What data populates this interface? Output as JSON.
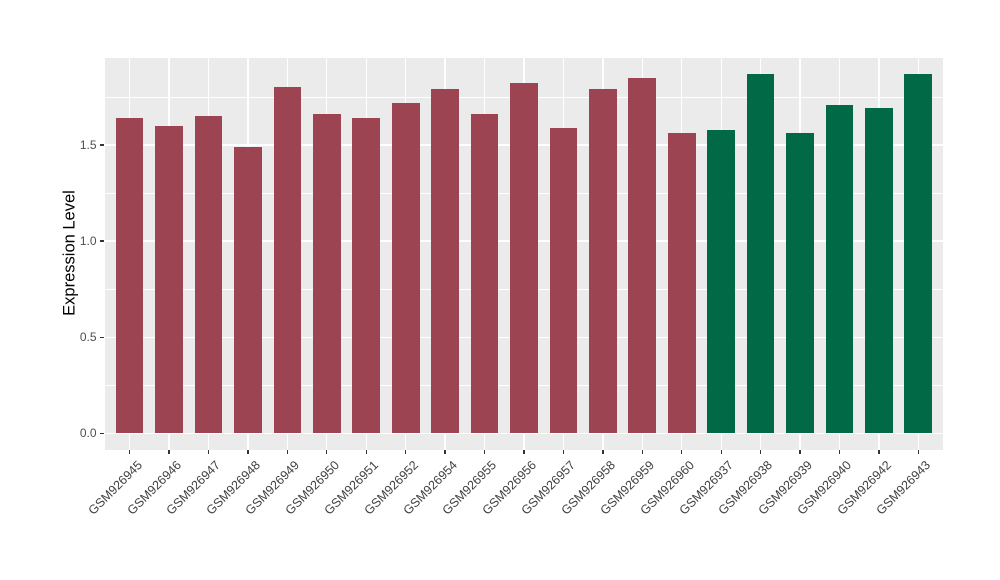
{
  "chart_data": {
    "type": "bar",
    "title": "",
    "xlabel": "",
    "ylabel": "Expression Level",
    "ylim": [
      0,
      1.955
    ],
    "yticks": [
      0.0,
      0.5,
      1.0,
      1.5
    ],
    "ytick_labels": [
      "0.0",
      "0.5",
      "1.0",
      "1.5"
    ],
    "minor_gridlines": [
      0.25,
      0.75,
      1.25,
      1.75
    ],
    "grid": "on",
    "legend_position": "none",
    "bar_width_fraction": 0.7,
    "categories": [
      "GSM926945",
      "GSM926946",
      "GSM926947",
      "GSM926948",
      "GSM926949",
      "GSM926950",
      "GSM926951",
      "GSM926952",
      "GSM926954",
      "GSM926955",
      "GSM926956",
      "GSM926957",
      "GSM926958",
      "GSM926959",
      "GSM926960",
      "GSM926937",
      "GSM926938",
      "GSM926939",
      "GSM926940",
      "GSM926942",
      "GSM926943"
    ],
    "values": [
      1.64,
      1.6,
      1.65,
      1.49,
      1.8,
      1.66,
      1.64,
      1.72,
      1.79,
      1.66,
      1.82,
      1.59,
      1.79,
      1.85,
      1.56,
      1.58,
      1.87,
      1.56,
      1.71,
      1.69,
      1.87
    ],
    "bar_groups": [
      0,
      0,
      0,
      0,
      0,
      0,
      0,
      0,
      0,
      0,
      0,
      0,
      0,
      0,
      0,
      1,
      1,
      1,
      1,
      1,
      1
    ],
    "group_colors": [
      "#9C4452",
      "#016945"
    ]
  },
  "style": {
    "panel_background": "#EBEBEB",
    "gridline_color": "#FFFFFF",
    "tick_label_color": "#4D4D4D",
    "x_tick_label_color": "#404040",
    "axis_title_color": "#000000",
    "figure_background": "#FFFFFF"
  }
}
